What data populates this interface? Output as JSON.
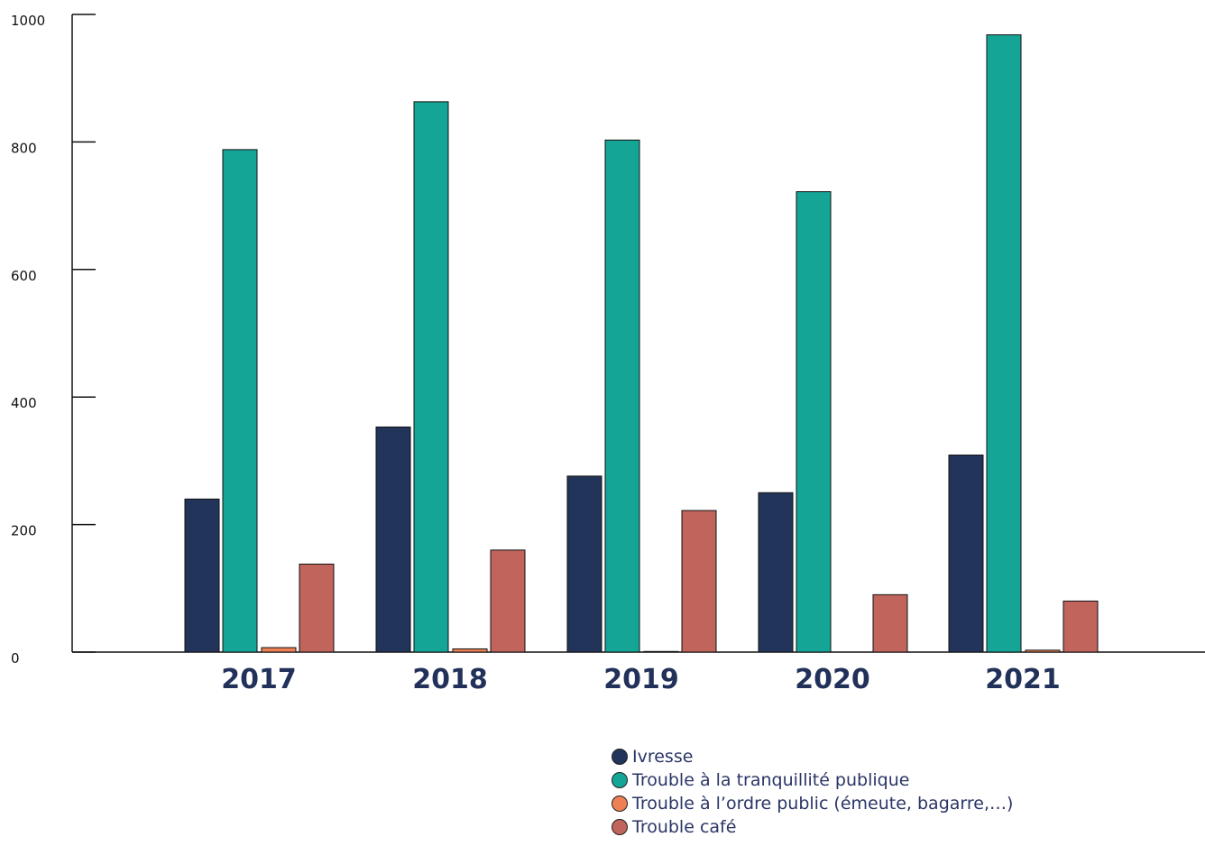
{
  "chart_data": {
    "type": "bar",
    "categories": [
      "2017",
      "2018",
      "2019",
      "2020",
      "2021"
    ],
    "series": [
      {
        "name": "Ivresse",
        "color": "#22345a",
        "values": [
          240,
          353,
          276,
          250,
          309
        ]
      },
      {
        "name": "Trouble à la tranquillité publique",
        "color": "#15a596",
        "values": [
          788,
          863,
          803,
          722,
          968
        ]
      },
      {
        "name": "Trouble à l’ordre public (émeute, bagarre,…)",
        "color": "#ee8153",
        "values": [
          7,
          5,
          1,
          0,
          3
        ]
      },
      {
        "name": "Trouble café",
        "color": "#c0645c",
        "values": [
          138,
          160,
          222,
          90,
          80
        ]
      }
    ],
    "yticks": [
      "0",
      "200",
      "400",
      "600",
      "800",
      "1000"
    ],
    "ylim": [
      0,
      1000
    ],
    "grid": false,
    "legend_position": "bottom-right",
    "title": "",
    "xlabel": "",
    "ylabel": ""
  }
}
